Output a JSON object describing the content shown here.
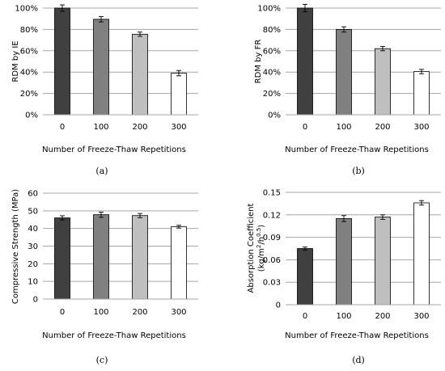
{
  "chart_data": [
    {
      "panel_label": "(a)",
      "type": "bar",
      "categories": [
        "0",
        "100",
        "200",
        "300"
      ],
      "values": [
        100,
        89.5,
        75.5,
        39
      ],
      "errors": [
        3,
        2.5,
        2,
        2.5
      ],
      "ylabel": "RDM by IE",
      "xlabel": "Number of Freeze-Thaw Repetitions",
      "ylim": [
        0,
        100
      ],
      "yticks": [
        "0%",
        "20%",
        "40%",
        "60%",
        "80%",
        "100%"
      ],
      "bar_colors": [
        "#404040",
        "#808080",
        "#bfbfbf",
        "#ffffff"
      ],
      "grid": true
    },
    {
      "panel_label": "(b)",
      "type": "bar",
      "categories": [
        "0",
        "100",
        "200",
        "300"
      ],
      "values": [
        100,
        80,
        62,
        40.5
      ],
      "errors": [
        3.5,
        2.5,
        2,
        2
      ],
      "ylabel": "RDM by FR",
      "xlabel": "Number of Freeze-Thaw Repetitions",
      "ylim": [
        0,
        100
      ],
      "yticks": [
        "0%",
        "20%",
        "40%",
        "60%",
        "80%",
        "100%"
      ],
      "bar_colors": [
        "#404040",
        "#808080",
        "#bfbfbf",
        "#ffffff"
      ],
      "grid": true
    },
    {
      "panel_label": "(c)",
      "type": "bar",
      "categories": [
        "0",
        "100",
        "200",
        "300"
      ],
      "values": [
        46,
        47.8,
        47.3,
        41
      ],
      "errors": [
        1.2,
        1.5,
        1.2,
        0.8
      ],
      "ylabel": "Compressive Strength (MPa)",
      "xlabel": "Number of Freeze-Thaw Repetitions",
      "ylim": [
        0,
        60
      ],
      "yticks": [
        "0",
        "10",
        "20",
        "30",
        "40",
        "50",
        "60"
      ],
      "bar_colors": [
        "#404040",
        "#808080",
        "#bfbfbf",
        "#ffffff"
      ],
      "grid": true
    },
    {
      "panel_label": "(d)",
      "type": "bar",
      "categories": [
        "0",
        "100",
        "200",
        "300"
      ],
      "values": [
        0.075,
        0.115,
        0.117,
        0.136
      ],
      "errors": [
        0.002,
        0.004,
        0.003,
        0.003
      ],
      "ylabel": "Absorption Coefficient",
      "ylabel_unit": {
        "pre": "(kg/m",
        "sup1": "2",
        "mid": "/h",
        "sup2": "0.5",
        "post": ")"
      },
      "xlabel": "Number of Freeze-Thaw Repetitions",
      "ylim": [
        0,
        0.15
      ],
      "yticks": [
        "0",
        "0.03",
        "0.06",
        "0.09",
        "0.12",
        "0.15"
      ],
      "bar_colors": [
        "#404040",
        "#808080",
        "#bfbfbf",
        "#ffffff"
      ],
      "grid": true
    }
  ]
}
